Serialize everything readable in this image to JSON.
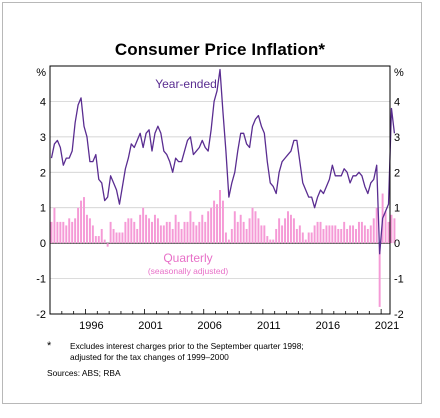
{
  "chart_data": {
    "type": "bar+line",
    "title": "Consumer Price Inflation*",
    "ylabel_left": "%",
    "ylabel_right": "%",
    "ylim": [
      -2,
      5
    ],
    "yticks": [
      -2,
      -1,
      0,
      1,
      2,
      3,
      4
    ],
    "ytick_labels": [
      "-2",
      "-1",
      "0",
      "1",
      "2",
      "3",
      "4"
    ],
    "xlim": [
      1993,
      2021.75
    ],
    "xticks": [
      1996,
      2001,
      2006,
      2011,
      2016,
      2021
    ],
    "xtick_labels": [
      "1996",
      "2001",
      "2006",
      "2011",
      "2016",
      "2021"
    ],
    "grid": true,
    "colors": {
      "year_ended": "#5a2d91",
      "quarterly": "#f59ad6",
      "quarterly_label": "#e870c8"
    },
    "series": [
      {
        "name": "Year-ended",
        "type": "line",
        "start": 1993.0,
        "step": 0.25,
        "values": [
          2.4,
          2.8,
          2.9,
          2.7,
          2.2,
          2.4,
          2.4,
          2.6,
          3.4,
          3.9,
          4.1,
          3.3,
          3.0,
          2.3,
          2.3,
          2.5,
          1.8,
          1.7,
          1.2,
          1.3,
          1.9,
          1.7,
          1.5,
          1.1,
          1.6,
          2.1,
          2.4,
          2.8,
          2.7,
          2.9,
          3.1,
          2.7,
          3.1,
          3.2,
          2.6,
          3.1,
          3.3,
          3.1,
          2.6,
          2.5,
          2.3,
          2.0,
          2.4,
          2.3,
          2.3,
          2.6,
          2.9,
          3.0,
          2.5,
          2.6,
          2.7,
          2.9,
          2.7,
          2.6,
          3.2,
          4.0,
          4.3,
          4.9,
          3.7,
          2.6,
          1.3,
          1.7,
          2.0,
          2.6,
          3.1,
          3.1,
          2.8,
          2.7,
          3.3,
          3.5,
          3.6,
          3.3,
          3.1,
          2.3,
          1.7,
          1.6,
          1.4,
          2.0,
          2.3,
          2.4,
          2.5,
          2.6,
          2.9,
          2.9,
          2.3,
          1.7,
          1.5,
          1.3,
          1.3,
          1.0,
          1.3,
          1.5,
          1.4,
          1.6,
          1.8,
          2.2,
          1.9,
          1.9,
          1.9,
          2.1,
          2.0,
          1.7,
          1.9,
          1.9,
          2.0,
          1.9,
          1.6,
          1.4,
          1.7,
          1.8,
          2.2,
          -0.3,
          0.7,
          0.9,
          1.1,
          3.8,
          3.1
        ]
      },
      {
        "name": "Quarterly",
        "note": "(seasonally adjusted)",
        "type": "bar",
        "start": 1993.0,
        "step": 0.25,
        "values": [
          0.6,
          1.0,
          0.6,
          0.6,
          0.6,
          0.5,
          0.7,
          0.6,
          0.7,
          1.0,
          1.2,
          1.3,
          0.8,
          0.7,
          0.5,
          0.2,
          0.2,
          0.4,
          0.1,
          -0.1,
          0.6,
          0.4,
          0.3,
          0.3,
          0.3,
          0.6,
          0.7,
          0.7,
          0.6,
          0.4,
          0.8,
          1.0,
          0.8,
          0.7,
          0.6,
          0.8,
          0.7,
          0.5,
          0.5,
          0.6,
          0.6,
          0.4,
          0.8,
          0.6,
          0.4,
          0.6,
          0.6,
          0.9,
          0.6,
          0.5,
          0.6,
          0.8,
          0.6,
          0.9,
          1.0,
          1.2,
          1.1,
          1.5,
          1.2,
          0.3,
          0.1,
          0.4,
          0.9,
          0.6,
          0.8,
          0.6,
          0.4,
          0.7,
          1.0,
          0.9,
          0.7,
          0.5,
          0.5,
          0.2,
          0.1,
          0.1,
          0.4,
          0.7,
          0.5,
          0.7,
          0.9,
          0.8,
          0.7,
          0.4,
          0.5,
          0.3,
          0.1,
          0.3,
          0.3,
          0.5,
          0.6,
          0.6,
          0.4,
          0.5,
          0.5,
          0.5,
          0.5,
          0.4,
          0.4,
          0.6,
          0.4,
          0.5,
          0.5,
          0.4,
          0.6,
          0.6,
          0.5,
          0.4,
          0.5,
          0.7,
          1.0,
          -1.8,
          1.4,
          0.9,
          0.6,
          0.8,
          0.7
        ]
      }
    ],
    "annotations": [
      {
        "text": "Year-ended"
      },
      {
        "text": "Quarterly"
      },
      {
        "text": "(seasonally adjusted)"
      }
    ]
  },
  "footnote": {
    "marker": "*",
    "line1": "Excludes interest charges prior to the September quarter 1998;",
    "line2": "adjusted for the tax changes of 1999–2000",
    "sources": "Sources: ABS; RBA"
  }
}
